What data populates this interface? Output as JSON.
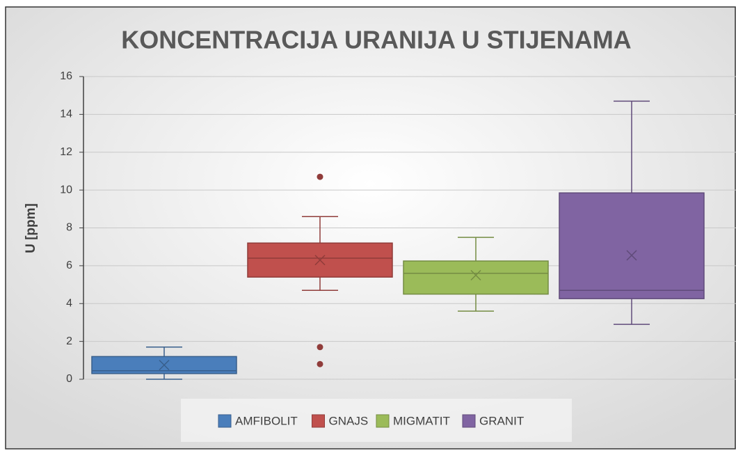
{
  "chart_data": {
    "type": "box",
    "title": "KONCENTRACIJA URANIJA U STIJENAMA",
    "ylabel": "U  [ppm]",
    "ylim": [
      0,
      16
    ],
    "yticks": [
      0,
      2,
      4,
      6,
      8,
      10,
      12,
      14,
      16
    ],
    "grid": true,
    "legend": "bottom",
    "series": [
      {
        "name": "AMFIBOLIT",
        "color": "#4a7ebb",
        "min": 0,
        "q1": 0.3,
        "median": 0.45,
        "q3": 1.2,
        "max": 1.7,
        "mean": 0.75,
        "outliers": []
      },
      {
        "name": "GNAJS",
        "color": "#c0504d",
        "min": 4.7,
        "q1": 5.4,
        "median": 6.4,
        "q3": 7.2,
        "max": 8.6,
        "mean": 6.3,
        "outliers": [
          10.7,
          1.7,
          0.8
        ]
      },
      {
        "name": "MIGMATIT",
        "color": "#9bbb59",
        "min": 3.6,
        "q1": 4.5,
        "median": 5.6,
        "q3": 6.25,
        "max": 7.5,
        "mean": 5.5,
        "outliers": []
      },
      {
        "name": "GRANIT",
        "color": "#8064a2",
        "min": 2.9,
        "q1": 4.26,
        "median": 4.7,
        "q3": 9.85,
        "max": 14.7,
        "mean": 6.55,
        "outliers": []
      }
    ]
  }
}
